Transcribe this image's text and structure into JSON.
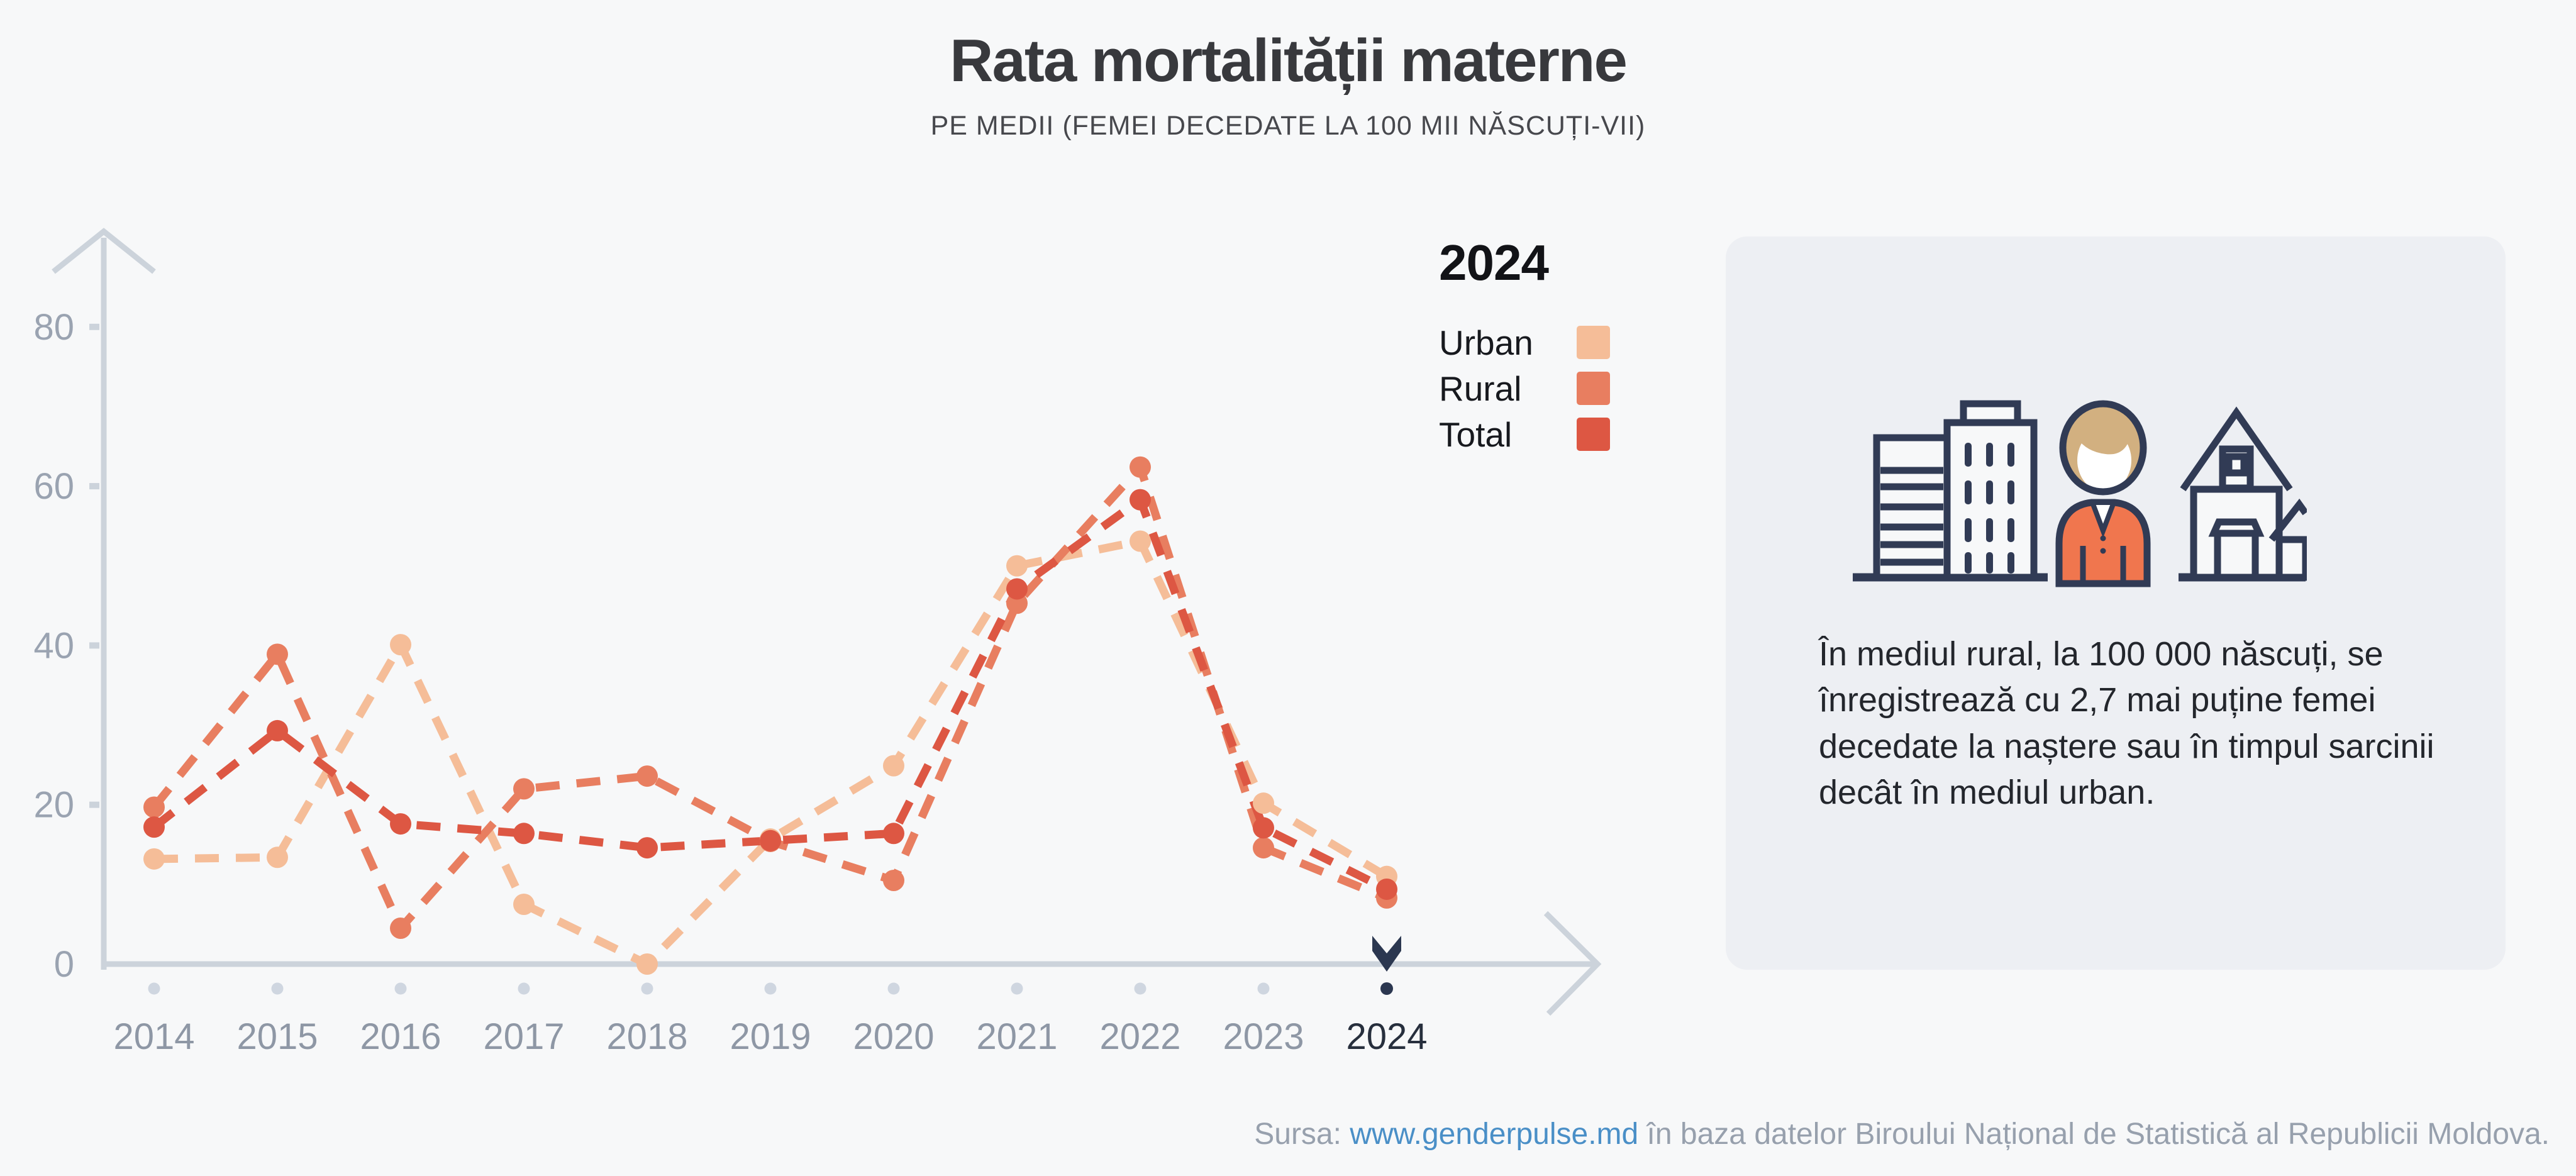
{
  "page": {
    "background": "#f7f8f9",
    "infobox_background": "#edeff3"
  },
  "header": {
    "title": "Rata mortalității materne",
    "subtitle": "PE MEDII (FEMEI DECEDATE LA 100 MII NĂSCUȚI-VII)"
  },
  "legend": {
    "year": "2024",
    "items": [
      {
        "id": "urban",
        "label": "Urban",
        "color": "#f5bd98"
      },
      {
        "id": "rural",
        "label": "Rural",
        "color": "#e87e60"
      },
      {
        "id": "total",
        "label": "Total",
        "color": "#dd5743"
      }
    ]
  },
  "chart_data": {
    "type": "line",
    "style": "dashed-lines-with-dots",
    "x": [
      2014,
      2015,
      2016,
      2017,
      2018,
      2019,
      2020,
      2021,
      2022,
      2023,
      2024
    ],
    "series": [
      {
        "name": "Urban",
        "color": "#f5bd98",
        "values": [
          13.2,
          13.4,
          40.1,
          7.5,
          0.0,
          15.7,
          24.9,
          50.0,
          53.1,
          20.2,
          11.0
        ]
      },
      {
        "name": "Rural",
        "color": "#e87e60",
        "values": [
          19.7,
          38.9,
          4.5,
          22.0,
          23.6,
          15.4,
          10.5,
          45.3,
          62.4,
          14.6,
          8.3
        ]
      },
      {
        "name": "Total",
        "color": "#dd5743",
        "values": [
          17.2,
          29.3,
          17.6,
          16.4,
          14.6,
          15.5,
          16.4,
          47.1,
          58.3,
          17.1,
          9.4
        ]
      }
    ],
    "ylim": [
      0,
      88
    ],
    "y_ticks": [
      0,
      20,
      40,
      60,
      80
    ],
    "highlight_year": 2024,
    "grid": false,
    "legend_position": "right-top",
    "axis_color": "#ccd3db",
    "tick_label_color": "#9aa3b1",
    "x_label_color": "#8e97a5",
    "highlight_label_color": "#272f3d",
    "timeline_dot_color": "#cfd6e0",
    "timeline_highlight_color": "#2b3750"
  },
  "infobox": {
    "icons": [
      "city-buildings-icon",
      "woman-icon",
      "house-icon"
    ],
    "text": "În mediul rural, la 100 000 născuți, se înregistrează cu 2,7 mai puține femei decedate la naștere sau în timpul sarcinii decât în mediul urban."
  },
  "footer": {
    "label": "Sursa: ",
    "link": "www.genderpulse.md",
    "rest": " în baza datelor Biroului Național de Statistică al Republicii Moldova.",
    "link_color": "#4a8fc7"
  }
}
